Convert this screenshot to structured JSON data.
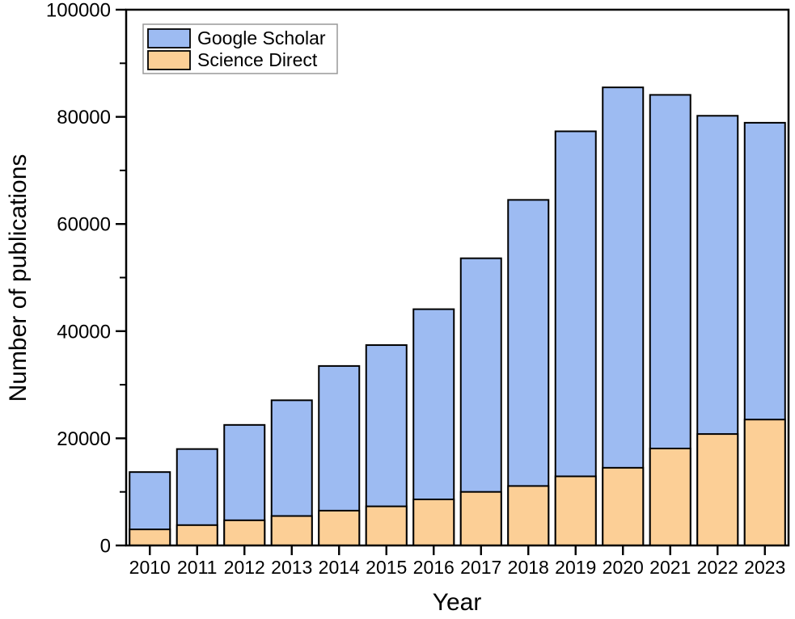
{
  "chart_data": {
    "type": "bar",
    "subtype": "overlaid (Science Direct bars drawn in front of Google Scholar bars, both starting at 0)",
    "title": "",
    "xlabel": "Year",
    "ylabel": "Number of publications",
    "ylim": [
      0,
      100000
    ],
    "y_major_ticks": [
      0,
      20000,
      40000,
      60000,
      80000,
      100000
    ],
    "y_minor_ticks": [
      10000,
      30000,
      50000,
      70000,
      90000
    ],
    "grid": false,
    "legend_position": "top-left",
    "bar_outline_color": "#000000",
    "frame_color": "#000000",
    "categories": [
      "2010",
      "2011",
      "2012",
      "2013",
      "2014",
      "2015",
      "2016",
      "2017",
      "2018",
      "2019",
      "2020",
      "2021",
      "2022",
      "2023"
    ],
    "series": [
      {
        "name": "Google Scholar",
        "color": "#9dbbf2",
        "values": [
          13700,
          18000,
          22500,
          27100,
          33500,
          37400,
          44100,
          53600,
          64500,
          77300,
          85500,
          84100,
          80200,
          78900
        ]
      },
      {
        "name": "Science Direct",
        "color": "#fccf96",
        "values": [
          3000,
          3800,
          4700,
          5500,
          6500,
          7300,
          8600,
          10000,
          11100,
          12900,
          14500,
          18100,
          20800,
          23500
        ]
      }
    ]
  }
}
